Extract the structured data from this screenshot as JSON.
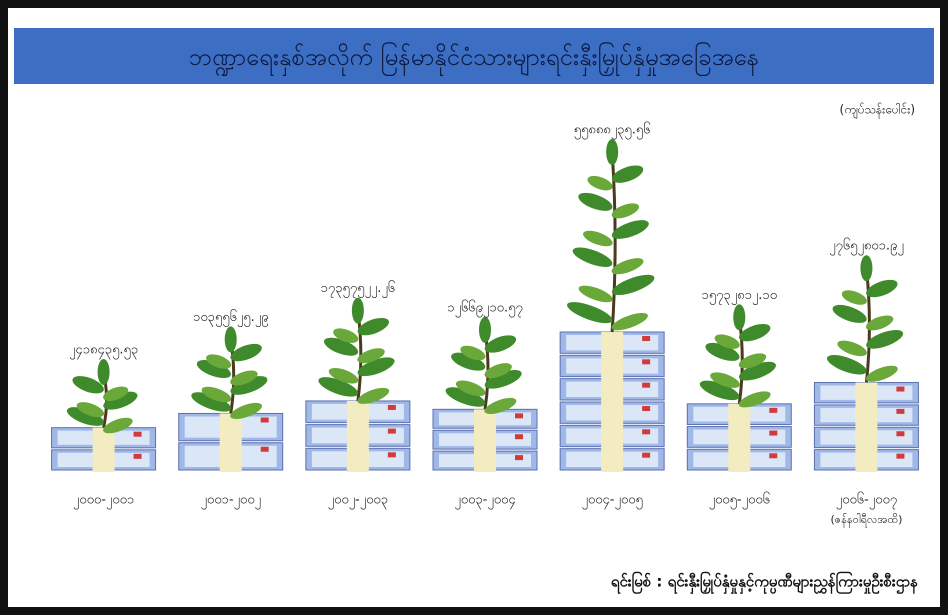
{
  "chart_data": {
    "type": "pictorial-bar",
    "title": "ဘဏ္ဍာရေးနှစ်အလိုက် မြန်မာနိုင်ငံသားများရင်းနှီးမြှုပ်နှံမှုအခြေအနေ",
    "unit": "(ကျပ်သန်းပေါင်း)",
    "categories": [
      "၂၀၀၀-၂၀၀၁",
      "၂၀၀၁-၂၀၀၂",
      "၂၀၀၂-၂၀၀၃",
      "၂၀၀၃-၂၀၀၄",
      "၂၀၀၄-၂၀၀၅",
      "၂၀၀၅-၂၀၀၆",
      "၂၀၀၆-၂၀၀၇"
    ],
    "category_note": "(ဇန်နဝါရီလအထိ)",
    "values": [
      2418435.53,
      10355625.29,
      17357522.26,
      12669210.57,
      55888235.56,
      15732812.1,
      27652801.92
    ],
    "value_labels": [
      "၂၄၁၈၄၃၅.၅၃",
      "၁၀၃၅၅၆၂၅.၂၉",
      "၁၇၃၅၇၅၂၂.၂၆",
      "၁၂၆၆၉၂၁၀.၅၇",
      "၅၅၈၈၈၂၃၅.၅၆",
      "၁၅၇၃၂၈၁၂.၁၀",
      "၂၇၆၅၂၈၀၁.၉၂"
    ],
    "color": "#3f8a2a",
    "source": "ရင်းမြစ် : ရင်းနှီးမြှုပ်နှံမှုနှင့်ကုမ္ပဏီများညွှန်ကြားမှုဦးစီးဌာန"
  }
}
